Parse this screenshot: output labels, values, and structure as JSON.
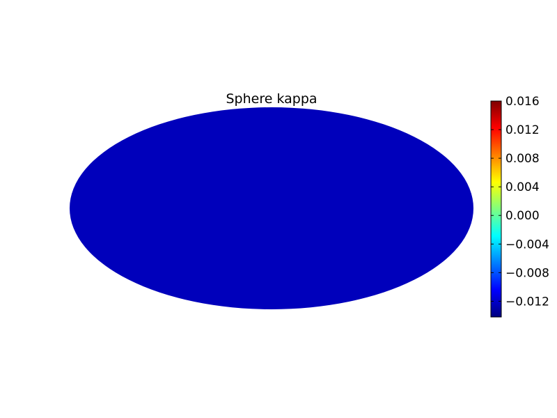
{
  "chart_data": {
    "type": "heatmap",
    "projection": "mollweide",
    "title": "Sphere kappa",
    "colormap": "jet",
    "colorbar": {
      "vmin": -0.0142,
      "vmax": 0.016,
      "ticks": [
        0.016,
        0.012,
        0.008,
        0.004,
        0.0,
        -0.004,
        -0.008,
        -0.012
      ],
      "tick_labels": [
        "0.016",
        "0.012",
        "0.008",
        "0.004",
        "0.000",
        "−0.004",
        "−0.008",
        "−0.012"
      ],
      "colors": [
        "#00007f",
        "#0000ff",
        "#007fff",
        "#00ffff",
        "#7fff7f",
        "#ffff00",
        "#ff7f00",
        "#ff0000",
        "#7f0000"
      ]
    },
    "grid": false,
    "background": "#ffffff"
  }
}
